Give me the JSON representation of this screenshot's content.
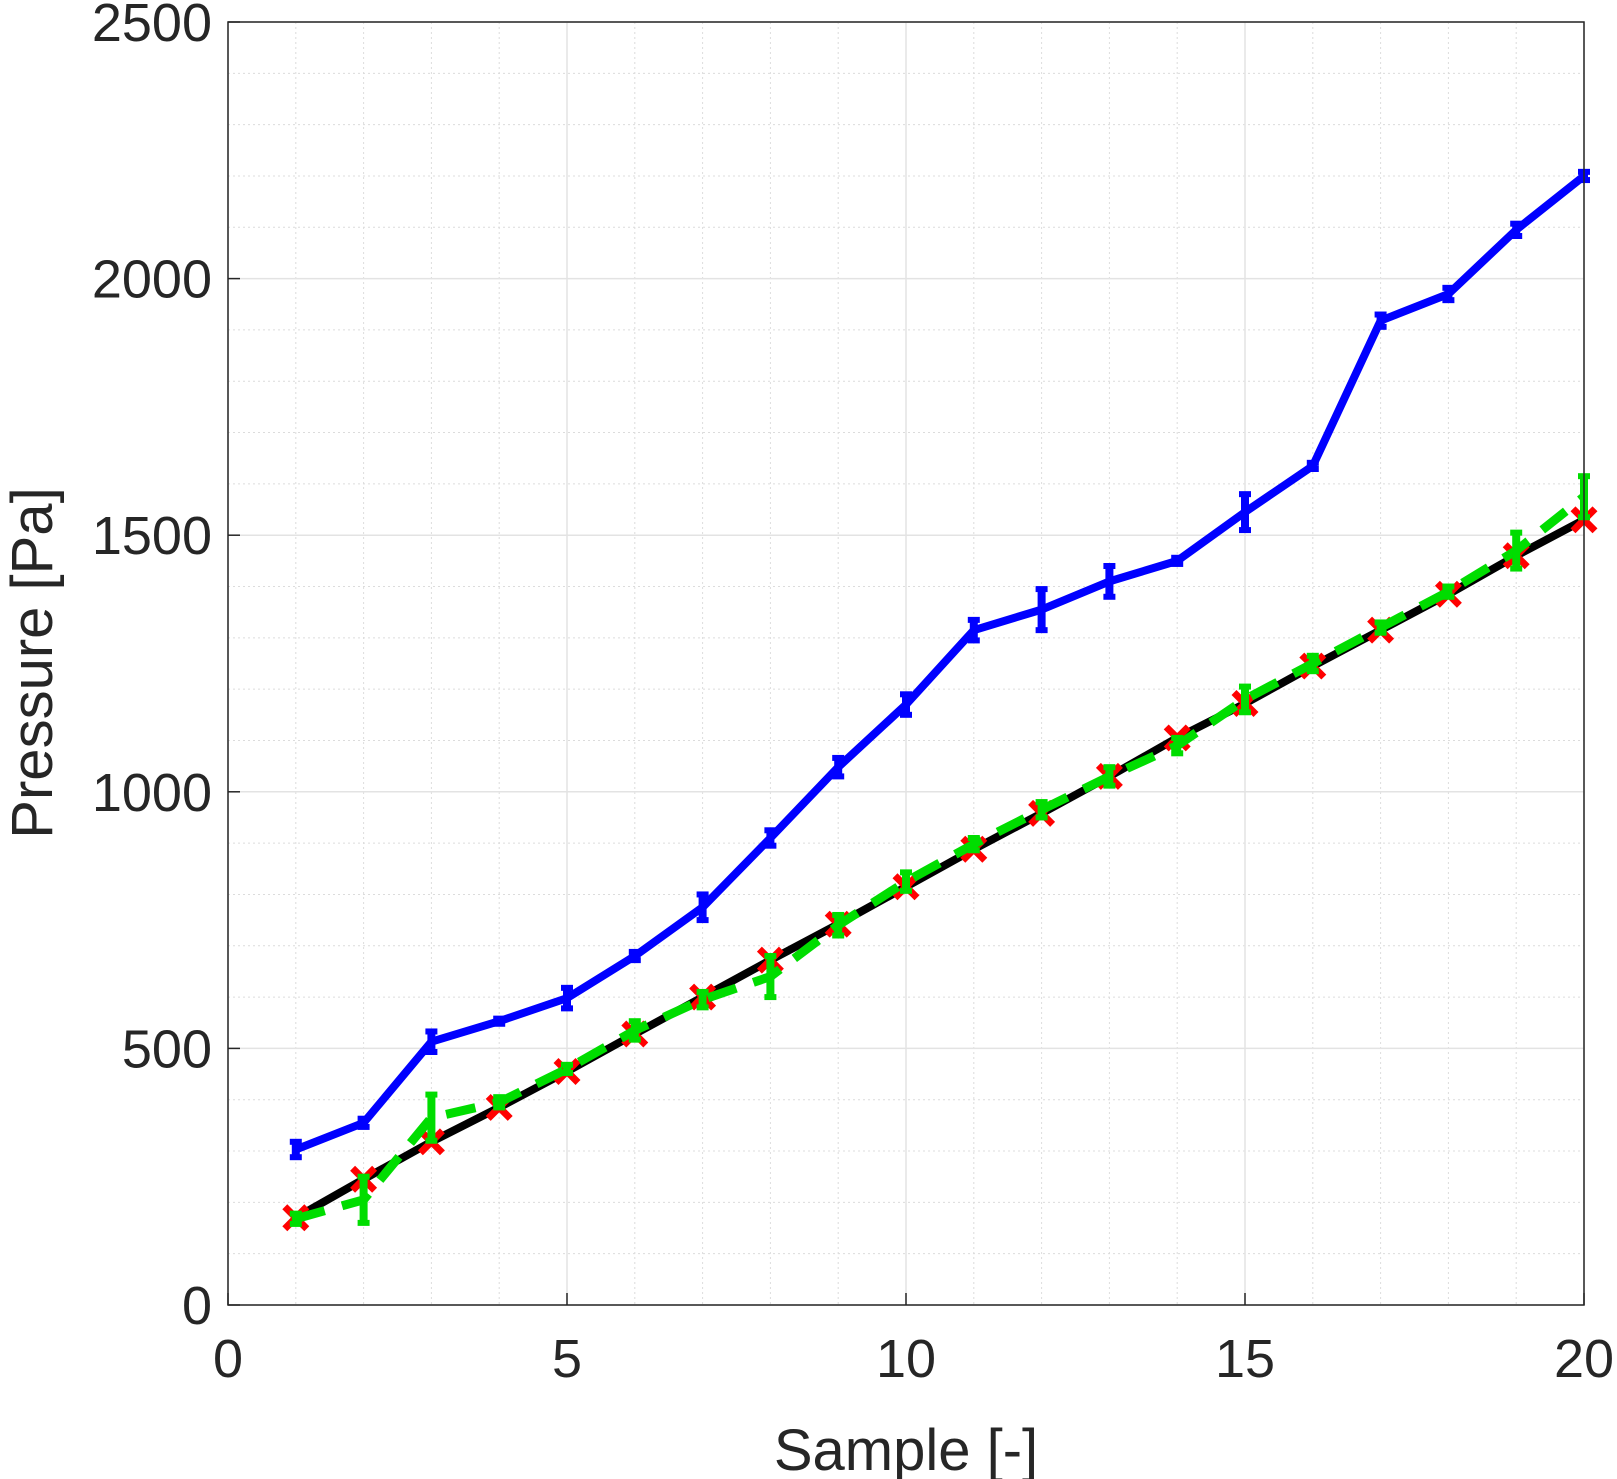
{
  "chart_data": {
    "type": "line",
    "title": "",
    "xlabel": "Sample [-]",
    "ylabel": "Pressure [Pa]",
    "xlim": [
      0,
      20
    ],
    "ylim": [
      0,
      2500
    ],
    "x_ticks": [
      0,
      5,
      10,
      15,
      20
    ],
    "y_ticks": [
      0,
      500,
      1000,
      1500,
      2000,
      2500
    ],
    "x_tick_labels": [
      "0",
      "5",
      "10",
      "15",
      "20"
    ],
    "y_tick_labels": [
      "0",
      "500",
      "1000",
      "1500",
      "2000",
      "2500"
    ],
    "grid": true,
    "minor_grid": true,
    "legend": "none",
    "x": [
      1,
      2,
      3,
      4,
      5,
      6,
      7,
      8,
      9,
      10,
      11,
      12,
      13,
      14,
      15,
      16,
      17,
      18,
      19,
      20
    ],
    "series": [
      {
        "color": "#0000ff",
        "line_style": "solid",
        "marker": "errorbar",
        "values": [
          303,
          355,
          513,
          553,
          598,
          680,
          775,
          910,
          1048,
          1170,
          1315,
          1355,
          1410,
          1450,
          1545,
          1635,
          1918,
          1970,
          2095,
          2200
        ],
        "errors": [
          15,
          8,
          20,
          5,
          20,
          8,
          25,
          15,
          18,
          20,
          20,
          40,
          30,
          6,
          35,
          6,
          12,
          12,
          12,
          8
        ]
      },
      {
        "color": "#000000",
        "line_style": "solid",
        "marker": "none",
        "values": [
          170,
          245,
          318,
          385,
          455,
          528,
          600,
          672,
          742,
          815,
          888,
          958,
          1030,
          1105,
          1172,
          1245,
          1315,
          1385,
          1460,
          1530
        ],
        "errors": []
      },
      {
        "color": "#ff0000",
        "line_style": "none",
        "marker": "x",
        "values": [
          170,
          245,
          318,
          385,
          455,
          528,
          600,
          672,
          742,
          815,
          888,
          958,
          1030,
          1105,
          1172,
          1245,
          1315,
          1385,
          1460,
          1530
        ],
        "errors": []
      },
      {
        "color": "#00dd00",
        "line_style": "dashed",
        "marker": "errorbar",
        "values": [
          168,
          205,
          365,
          395,
          460,
          535,
          595,
          640,
          740,
          825,
          898,
          965,
          1030,
          1090,
          1180,
          1250,
          1320,
          1390,
          1470,
          1575
        ],
        "errors": [
          10,
          45,
          45,
          10,
          8,
          18,
          15,
          40,
          20,
          18,
          12,
          15,
          18,
          15,
          25,
          15,
          10,
          10,
          35,
          40
        ]
      }
    ]
  }
}
